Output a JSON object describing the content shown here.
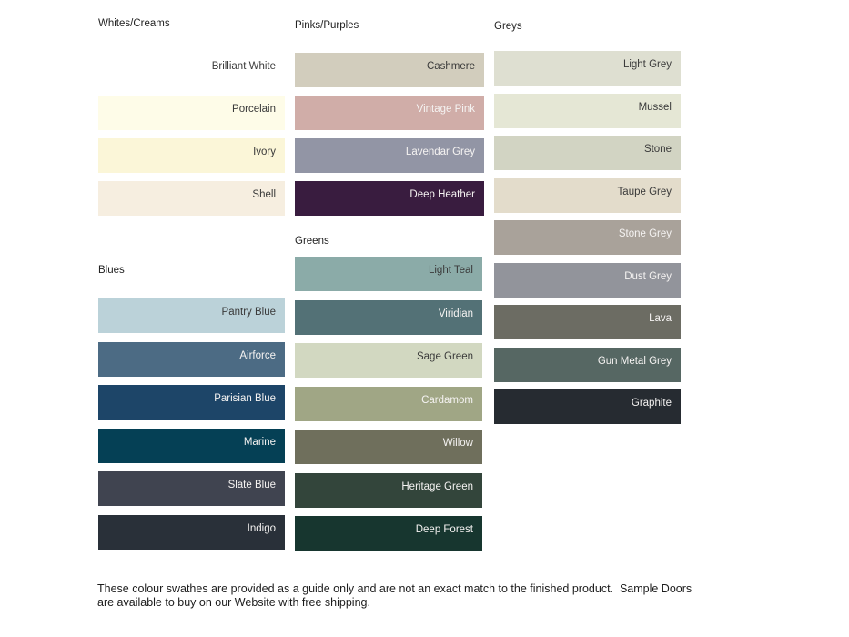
{
  "page": {
    "background": "#ffffff"
  },
  "sections": [
    {
      "title": "Whites/Creams",
      "swatches": [
        {
          "name": "Brilliant White",
          "color": "#ffffff",
          "text": "dark"
        },
        {
          "name": "Porcelain",
          "color": "#fefce8",
          "text": "dark"
        },
        {
          "name": "Ivory",
          "color": "#fbf6d8",
          "text": "dark"
        },
        {
          "name": "Shell",
          "color": "#f6eee0",
          "text": "dark"
        }
      ]
    },
    {
      "title": "Pinks/Purples",
      "swatches": [
        {
          "name": "Cashmere",
          "color": "#d2cdbd",
          "text": "dark"
        },
        {
          "name": "Vintage Pink",
          "color": "#d0ada8",
          "text": "light"
        },
        {
          "name": "Lavendar Grey",
          "color": "#9295a5",
          "text": "light"
        },
        {
          "name": "Deep Heather",
          "color": "#391c3f",
          "text": "light"
        }
      ]
    },
    {
      "title": "Greys",
      "swatches": [
        {
          "name": "Light Grey",
          "color": "#dedfd1",
          "text": "dark"
        },
        {
          "name": "Mussel",
          "color": "#e5e7d5",
          "text": "dark"
        },
        {
          "name": "Stone",
          "color": "#d2d4c3",
          "text": "dark"
        },
        {
          "name": "Taupe Grey",
          "color": "#e3dccb",
          "text": "dark"
        },
        {
          "name": "Stone Grey",
          "color": "#a9a29a",
          "text": "light"
        },
        {
          "name": "Dust Grey",
          "color": "#92949b",
          "text": "light"
        },
        {
          "name": "Lava",
          "color": "#6c6c63",
          "text": "light"
        },
        {
          "name": "Gun Metal Grey",
          "color": "#566763",
          "text": "light"
        },
        {
          "name": "Graphite",
          "color": "#262b31",
          "text": "light"
        }
      ]
    },
    {
      "title": "Blues",
      "swatches": [
        {
          "name": "Pantry Blue",
          "color": "#bbd2d9",
          "text": "dark"
        },
        {
          "name": "Airforce",
          "color": "#4c6b84",
          "text": "light"
        },
        {
          "name": "Parisian Blue",
          "color": "#1d4568",
          "text": "light"
        },
        {
          "name": "Marine",
          "color": "#054055",
          "text": "light"
        },
        {
          "name": "Slate Blue",
          "color": "#404450",
          "text": "light"
        },
        {
          "name": "Indigo",
          "color": "#293039",
          "text": "light"
        }
      ]
    },
    {
      "title": "Greens",
      "swatches": [
        {
          "name": "Light Teal",
          "color": "#8baba8",
          "text": "dark"
        },
        {
          "name": "Viridian",
          "color": "#537176",
          "text": "light"
        },
        {
          "name": "Sage Green",
          "color": "#d2d8c1",
          "text": "dark"
        },
        {
          "name": "Cardamom",
          "color": "#a0a685",
          "text": "light"
        },
        {
          "name": "Willow",
          "color": "#6f6f5c",
          "text": "light"
        },
        {
          "name": "Heritage Green",
          "color": "#33453b",
          "text": "light"
        },
        {
          "name": "Deep Forest",
          "color": "#17362f",
          "text": "light"
        }
      ]
    }
  ],
  "footer": {
    "text": "These colour swathes are provided as a guide only and are not an exact match to the finished product.  Sample Doors are available to buy on our Website with free shipping."
  }
}
